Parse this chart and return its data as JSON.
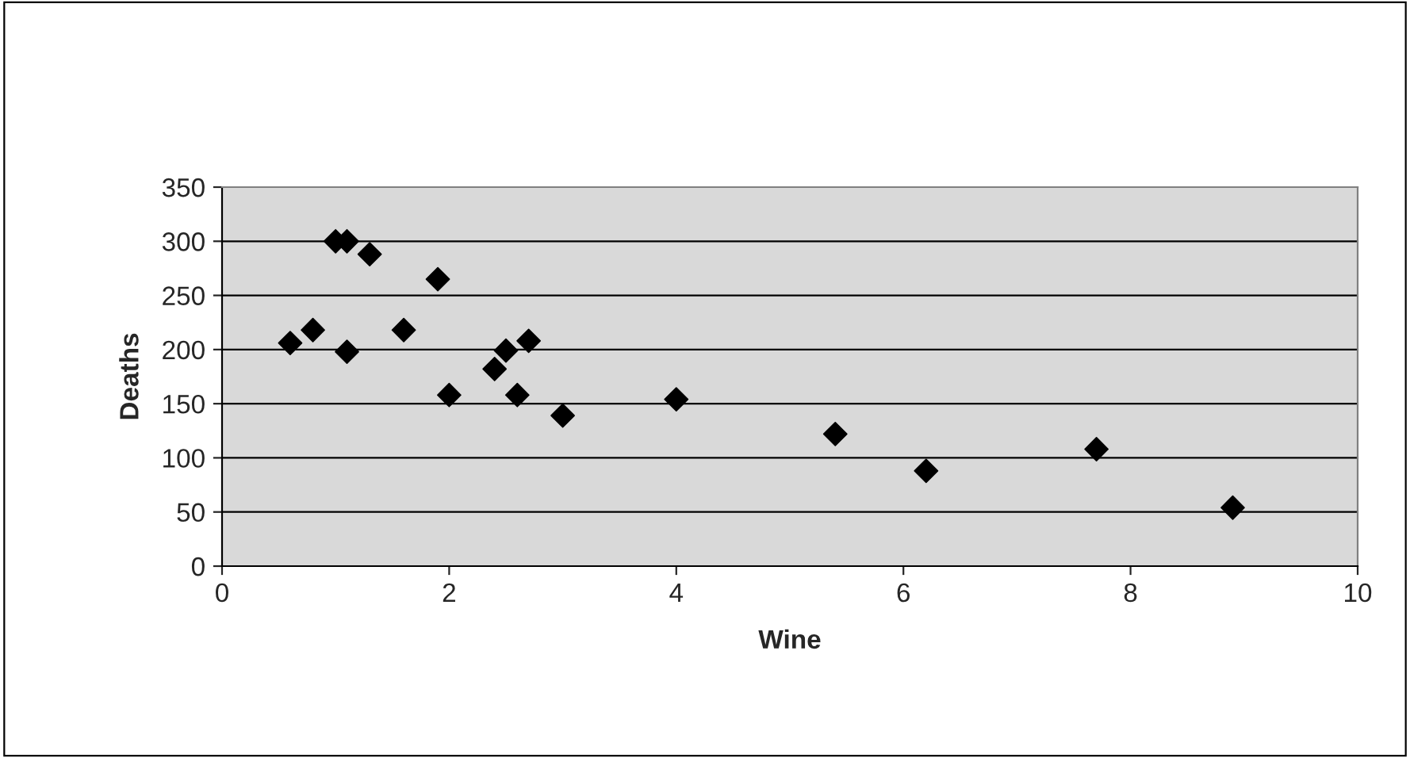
{
  "chart_data": {
    "type": "scatter",
    "xlabel": "Wine",
    "ylabel": "Deaths",
    "x": [
      0.6,
      0.8,
      1.0,
      1.1,
      1.1,
      1.3,
      1.6,
      1.9,
      2.0,
      2.4,
      2.5,
      2.6,
      2.7,
      3.0,
      4.0,
      5.4,
      6.2,
      7.7,
      8.9
    ],
    "series": [
      {
        "color": "#000000",
        "values": [
          206,
          218,
          300,
          300,
          198,
          288,
          218,
          265,
          158,
          182,
          199,
          158,
          208,
          139,
          154,
          122,
          88,
          108,
          54
        ]
      }
    ],
    "marker": "diamond",
    "grid": "y",
    "xlim": [
      0,
      10
    ],
    "xticks": [
      0,
      2,
      4,
      6,
      8,
      10
    ],
    "ylim": [
      0,
      350
    ],
    "yticks": [
      0,
      50,
      100,
      150,
      200,
      250,
      300,
      350
    ]
  }
}
